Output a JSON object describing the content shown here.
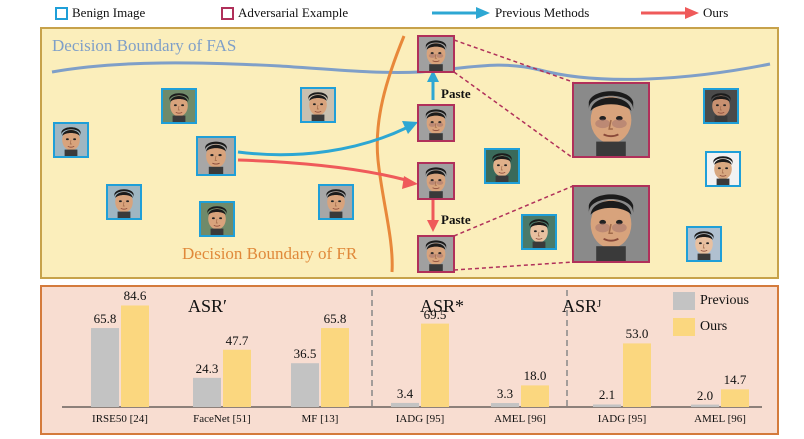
{
  "legend": {
    "benign": "Benign Image",
    "adversarial": "Adversarial Example",
    "previous": "Previous Methods",
    "ours": "Ours"
  },
  "diagram": {
    "fas_boundary": "Decision Boundary of FAS",
    "fr_boundary": "Decision Boundary of FR",
    "paste_top": "Paste",
    "paste_bottom": "Paste"
  },
  "colors": {
    "benign_border": "#1f9fd8",
    "adversarial_border": "#b0305a",
    "previous_arrow": "#2da7d3",
    "ours_arrow": "#ef5a5a",
    "previous_bar": "#c3c3c3",
    "ours_bar": "#fbd77f"
  },
  "chart_data": {
    "type": "bar",
    "groups": [
      {
        "title": "ASR′",
        "categories": [
          "IRSE50 [24]",
          "FaceNet [51]",
          "MF [13]"
        ]
      },
      {
        "title": "ASR*",
        "categories": [
          "IADG [95]",
          "AMEL [96]"
        ]
      },
      {
        "title": "ASRᴶ",
        "categories": [
          "IADG [95]",
          "AMEL [96]"
        ]
      }
    ],
    "categories": [
      "IRSE50 [24]",
      "FaceNet [51]",
      "MF [13]",
      "IADG [95]",
      "AMEL [96]",
      "IADG [95]",
      "AMEL [96]"
    ],
    "series": [
      {
        "name": "Previous",
        "values": [
          65.8,
          24.3,
          36.5,
          3.4,
          3.3,
          2.1,
          2.0
        ]
      },
      {
        "name": "Ours",
        "values": [
          84.6,
          47.7,
          65.8,
          69.5,
          18.0,
          53.0,
          14.7
        ]
      }
    ],
    "ylim": [
      0,
      100
    ],
    "legend_position": "top-right"
  }
}
